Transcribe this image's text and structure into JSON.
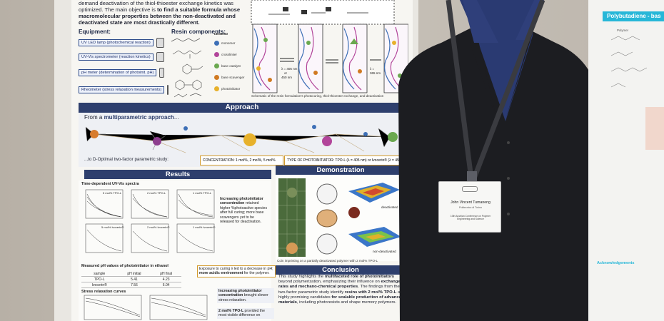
{
  "intro": {
    "lead": "demand deactivation of the thiol-thioester exchange kinetics was optimized. The main objective is ",
    "bold1": "to find a suitable formula whose macromolecular properties between the non-deactivated and deactivated state are most drastically different."
  },
  "equipment": {
    "title": "Equipment:",
    "items": [
      {
        "label": "UV LED lamp (photochemical reaction)"
      },
      {
        "label": "UV-Vis spectrometer (reaction kinetics)"
      },
      {
        "label": "pH meter (determination of photoinit. pH)"
      },
      {
        "label": "Rheometer (stress relaxation measurements)"
      }
    ]
  },
  "resin": {
    "title": "Resin components:",
    "legend_title": "LEGEND",
    "legend": [
      "monomer",
      "crosslinker",
      "base catalyst",
      "base scavenger",
      "photoinitiator"
    ],
    "colors": [
      "#3d6fb6",
      "#b2459a",
      "#6aa84f",
      "#d07a22",
      "#e7b12b"
    ]
  },
  "scheme": {
    "caption": "Schematic of the resin formulation's photocuring, thiol-thioester exchange, and deactivation",
    "wl1": "λ =\n405 nm\nor\n450 nm",
    "wl2": "λ =\n365 nm"
  },
  "approach": {
    "title": "Approach",
    "from": "From a ",
    "from_bold": "multiparametric approach",
    "from_tail": "...",
    "to_text": "...to D-Optimal two-factor parametric study:",
    "concentration": "CONCENTRATION: 1 mol%, 2 mol%, 5 mol%",
    "type": "TYPE OF PHOTOINITIATOR: TPO-L (λ = 405 nm) or Ivocerin® (λ = 450 nm)"
  },
  "results": {
    "title": "Results",
    "uv_title": "Time-dependent UV-Vis spectra",
    "plots": [
      "5 mol% TPO-L",
      "2 mol% TPO-L",
      "1 mol% TPO-L",
      "5 mol% Ivocerin®",
      "2 mol% Ivocerin®",
      "1 mol% Ivocerin®"
    ],
    "uv_note_pre": "Increasing photoinitiator concentration ",
    "uv_note_post": "retained higher %photoactive species after full curing; more base scavengers yet to be released for deactivation.",
    "ph_title": "Measured pH values of photoinitiator in ethanol",
    "ph_header": [
      "sample",
      "pH initial",
      "pH final"
    ],
    "ph_rows": [
      [
        "TPO-L",
        "5.41",
        "4.23"
      ],
      [
        "Ivocerin®",
        "7.56",
        "6.04"
      ]
    ],
    "ph_note_pre": "Exposure to curing λ led to a decrease in pH; ",
    "ph_note_bold": "more acidic environment",
    "ph_note_post": " for the polymer.",
    "stress_title": "Stress relaxation curves",
    "stress_note_pre": "Increasing photoinitiator concentration ",
    "stress_note_post": "brought slower stress relaxation.",
    "stress_note2_pre": "2 mol% TPO-L ",
    "stress_note2_post": "provided the most visible difference on"
  },
  "demonstration": {
    "title": "Demonstration",
    "label_deactivated": "deactivated",
    "label_nondeactivated": "non-deactivated",
    "caption": "Coin imprinting on a partially deactivated polymer with 2 mol% TPO-L"
  },
  "conclusion": {
    "title": "Conclusion",
    "p1": "This study highlights the ",
    "p1b": "multifaceted role of photoinitiators",
    "p2": " beyond polymerization, emphasizing their influence on ",
    "p2b": "exchange rates and mechano-chemical properties",
    "p3": ". The findings from the two-factor parametric study identify ",
    "p3b": "resins with 2 mol% TPO-L",
    "p4": " as highly promising candidates ",
    "p4b": "for scalable production of advanced materials",
    "p5": ", including photoresists and shape memory polymers."
  },
  "badge": {
    "name": "John Vincent Tumaneng",
    "org": "Politecnico di Torino",
    "event": "10th Austrian Conference on Polymer Engineering and Science"
  },
  "right_poster": {
    "title": "Polybutadiene - bas",
    "label_polymer": "Polymer",
    "acknowledgements": "Acknowledgements"
  }
}
